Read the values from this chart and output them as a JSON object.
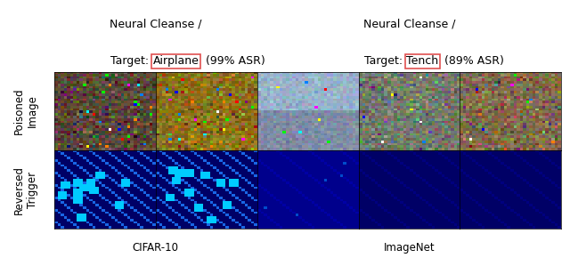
{
  "title_left_line1": "Neural Cleanse /",
  "title_left_line2_pre": "Target: ",
  "title_left_box": "Airplane",
  "title_left_line2_post": " (99% ASR)",
  "title_right_line1": "Neural Cleanse /",
  "title_right_line2_pre": "Target: ",
  "title_right_box": "Tench",
  "title_right_line2_post": " (89% ASR)",
  "ylabel_top": "Poisoned\nImage",
  "ylabel_bottom": "Reversed\nTrigger",
  "xlabel_left": "CIFAR-10",
  "xlabel_right": "ImageNet",
  "background_color": "#ffffff",
  "box_edgecolor": "#e05050",
  "title_fontsize": 9,
  "label_fontsize": 8.5,
  "dark_blue": "#00008B",
  "img_colors_top": [
    "#5a4535",
    "#9a7820",
    "#8fa8b8",
    "#6e8070",
    "#7a6545"
  ]
}
